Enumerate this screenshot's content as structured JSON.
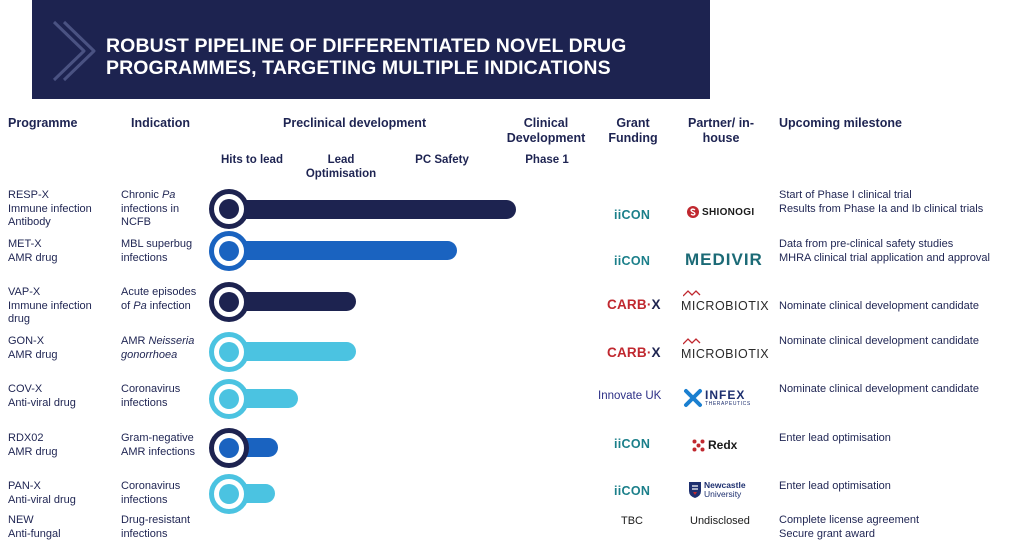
{
  "banner": {
    "title_line1": "ROBUST PIPELINE OF DIFFERENTIATED NOVEL DRUG",
    "title_line2": "PROGRAMMES, TARGETING MULTIPLE INDICATIONS"
  },
  "headers": {
    "programme": "Programme",
    "indication": "Indication",
    "preclinical": "Preclinical development",
    "clinical_l1": "Clinical",
    "clinical_l2": "Development",
    "grant_l1": "Grant",
    "grant_l2": "Funding",
    "partner_l1": "Partner/ in-",
    "partner_l2": "house",
    "milestone": "Upcoming milestone"
  },
  "stages": {
    "hits": "Hits to lead",
    "lead_l1": "Lead",
    "lead_l2": "Optimisation",
    "pc_safety": "PC Safety",
    "phase1": "Phase 1"
  },
  "colors": {
    "navy": "#1d2350",
    "blue": "#1a63c0",
    "light_blue": "#4bc3e1",
    "iicon_teal": "#1b7f8a",
    "carbx_red": "#c0282f"
  },
  "rows": [
    {
      "programme": [
        "RESP-X",
        "Immune infection",
        "Antibody"
      ],
      "indication": [
        {
          "parts": [
            {
              "text": "Chronic ",
              "italic": false
            },
            {
              "text": "Pa",
              "italic": true
            }
          ]
        },
        {
          "parts": [
            {
              "text": "infections in",
              "italic": false
            }
          ]
        },
        {
          "parts": [
            {
              "text": "NCFB",
              "italic": false
            }
          ]
        }
      ],
      "progress": "Phase 1",
      "color": "navy",
      "grant": {
        "type": "iicon",
        "text": "iiCON"
      },
      "partner": {
        "type": "shionogi",
        "text": "SHIONOGI",
        "icon": "shionogi-s-icon"
      },
      "milestones": [
        "Start of Phase I clinical trial",
        "Results from Phase Ia and Ib clinical trials"
      ]
    },
    {
      "programme": [
        "MET-X",
        "AMR drug"
      ],
      "indication": [
        {
          "parts": [
            {
              "text": "MBL superbug",
              "italic": false
            }
          ]
        },
        {
          "parts": [
            {
              "text": "infections",
              "italic": false
            }
          ]
        }
      ],
      "progress": "PC Safety",
      "color": "blue",
      "grant": {
        "type": "iicon",
        "text": "iiCON"
      },
      "partner": {
        "type": "medivir",
        "text": "MEDIVIR"
      },
      "milestones": [
        "Data from pre-clinical safety studies",
        "MHRA clinical trial application and approval"
      ]
    },
    {
      "programme": [
        "VAP-X",
        "Immune infection",
        "drug"
      ],
      "indication": [
        {
          "parts": [
            {
              "text": "Acute episodes",
              "italic": false
            }
          ]
        },
        {
          "parts": [
            {
              "text": "of ",
              "italic": false
            },
            {
              "text": "Pa",
              "italic": true
            },
            {
              "text": " infection",
              "italic": false
            }
          ]
        }
      ],
      "progress": "Lead Optimisation",
      "color": "navy",
      "grant": {
        "type": "carbx",
        "text": "CARB",
        "x": "X"
      },
      "partner": {
        "type": "microbiotix",
        "text": "MICROBIOTIX"
      },
      "milestones": [
        "Nominate clinical development candidate"
      ]
    },
    {
      "programme": [
        "GON-X",
        "AMR drug"
      ],
      "indication": [
        {
          "parts": [
            {
              "text": "AMR ",
              "italic": false
            },
            {
              "text": "Neisseria",
              "italic": true
            }
          ]
        },
        {
          "parts": [
            {
              "text": "gonorrhoea",
              "italic": true
            }
          ]
        }
      ],
      "progress": "Lead Optimisation",
      "color": "light_blue",
      "grant": {
        "type": "carbx",
        "text": "CARB",
        "x": "X"
      },
      "partner": {
        "type": "microbiotix",
        "text": "MICROBIOTIX"
      },
      "milestones": [
        "Nominate clinical development candidate"
      ]
    },
    {
      "programme": [
        "COV-X",
        "Anti-viral drug"
      ],
      "indication": [
        {
          "parts": [
            {
              "text": "Coronavirus",
              "italic": false
            }
          ]
        },
        {
          "parts": [
            {
              "text": "infections",
              "italic": false
            }
          ]
        }
      ],
      "progress": "Hits to lead / Lead Optimisation",
      "color": "light_blue",
      "grant": {
        "type": "innovate",
        "text": "Innovate UK"
      },
      "partner": {
        "type": "infex",
        "text": "INFEX",
        "sub": "THERAPEUTICS"
      },
      "milestones": [
        "Nominate clinical development candidate"
      ]
    },
    {
      "programme": [
        "RDX02",
        "AMR drug"
      ],
      "indication": [
        {
          "parts": [
            {
              "text": "Gram-negative",
              "italic": false
            }
          ]
        },
        {
          "parts": [
            {
              "text": "AMR infections",
              "italic": false
            }
          ]
        }
      ],
      "progress": "Hits to lead",
      "color": "blue",
      "grant": {
        "type": "iicon",
        "text": "iiCON"
      },
      "partner": {
        "type": "redx",
        "text": "Redx"
      },
      "milestones": [
        "Enter lead optimisation"
      ]
    },
    {
      "programme": [
        "PAN-X",
        "Anti-viral drug"
      ],
      "indication": [
        {
          "parts": [
            {
              "text": "Coronavirus",
              "italic": false
            }
          ]
        },
        {
          "parts": [
            {
              "text": "infections",
              "italic": false
            }
          ]
        }
      ],
      "progress": "Hits to lead",
      "color": "light_blue",
      "grant": {
        "type": "iicon",
        "text": "iiCON"
      },
      "partner": {
        "type": "newcastle",
        "text_l1": "Newcastle",
        "text_l2": "University"
      },
      "milestones": [
        "Enter lead optimisation"
      ]
    },
    {
      "programme": [
        "NEW",
        "Anti-fungal"
      ],
      "indication": [
        {
          "parts": [
            {
              "text": "Drug-resistant",
              "italic": false
            }
          ]
        },
        {
          "parts": [
            {
              "text": "infections",
              "italic": false
            }
          ]
        }
      ],
      "progress": "",
      "color": "",
      "grant": {
        "type": "text",
        "text": "TBC"
      },
      "partner": {
        "type": "text",
        "text": "Undisclosed"
      },
      "milestones": [
        "Complete license agreement",
        "Secure grant award"
      ]
    }
  ]
}
